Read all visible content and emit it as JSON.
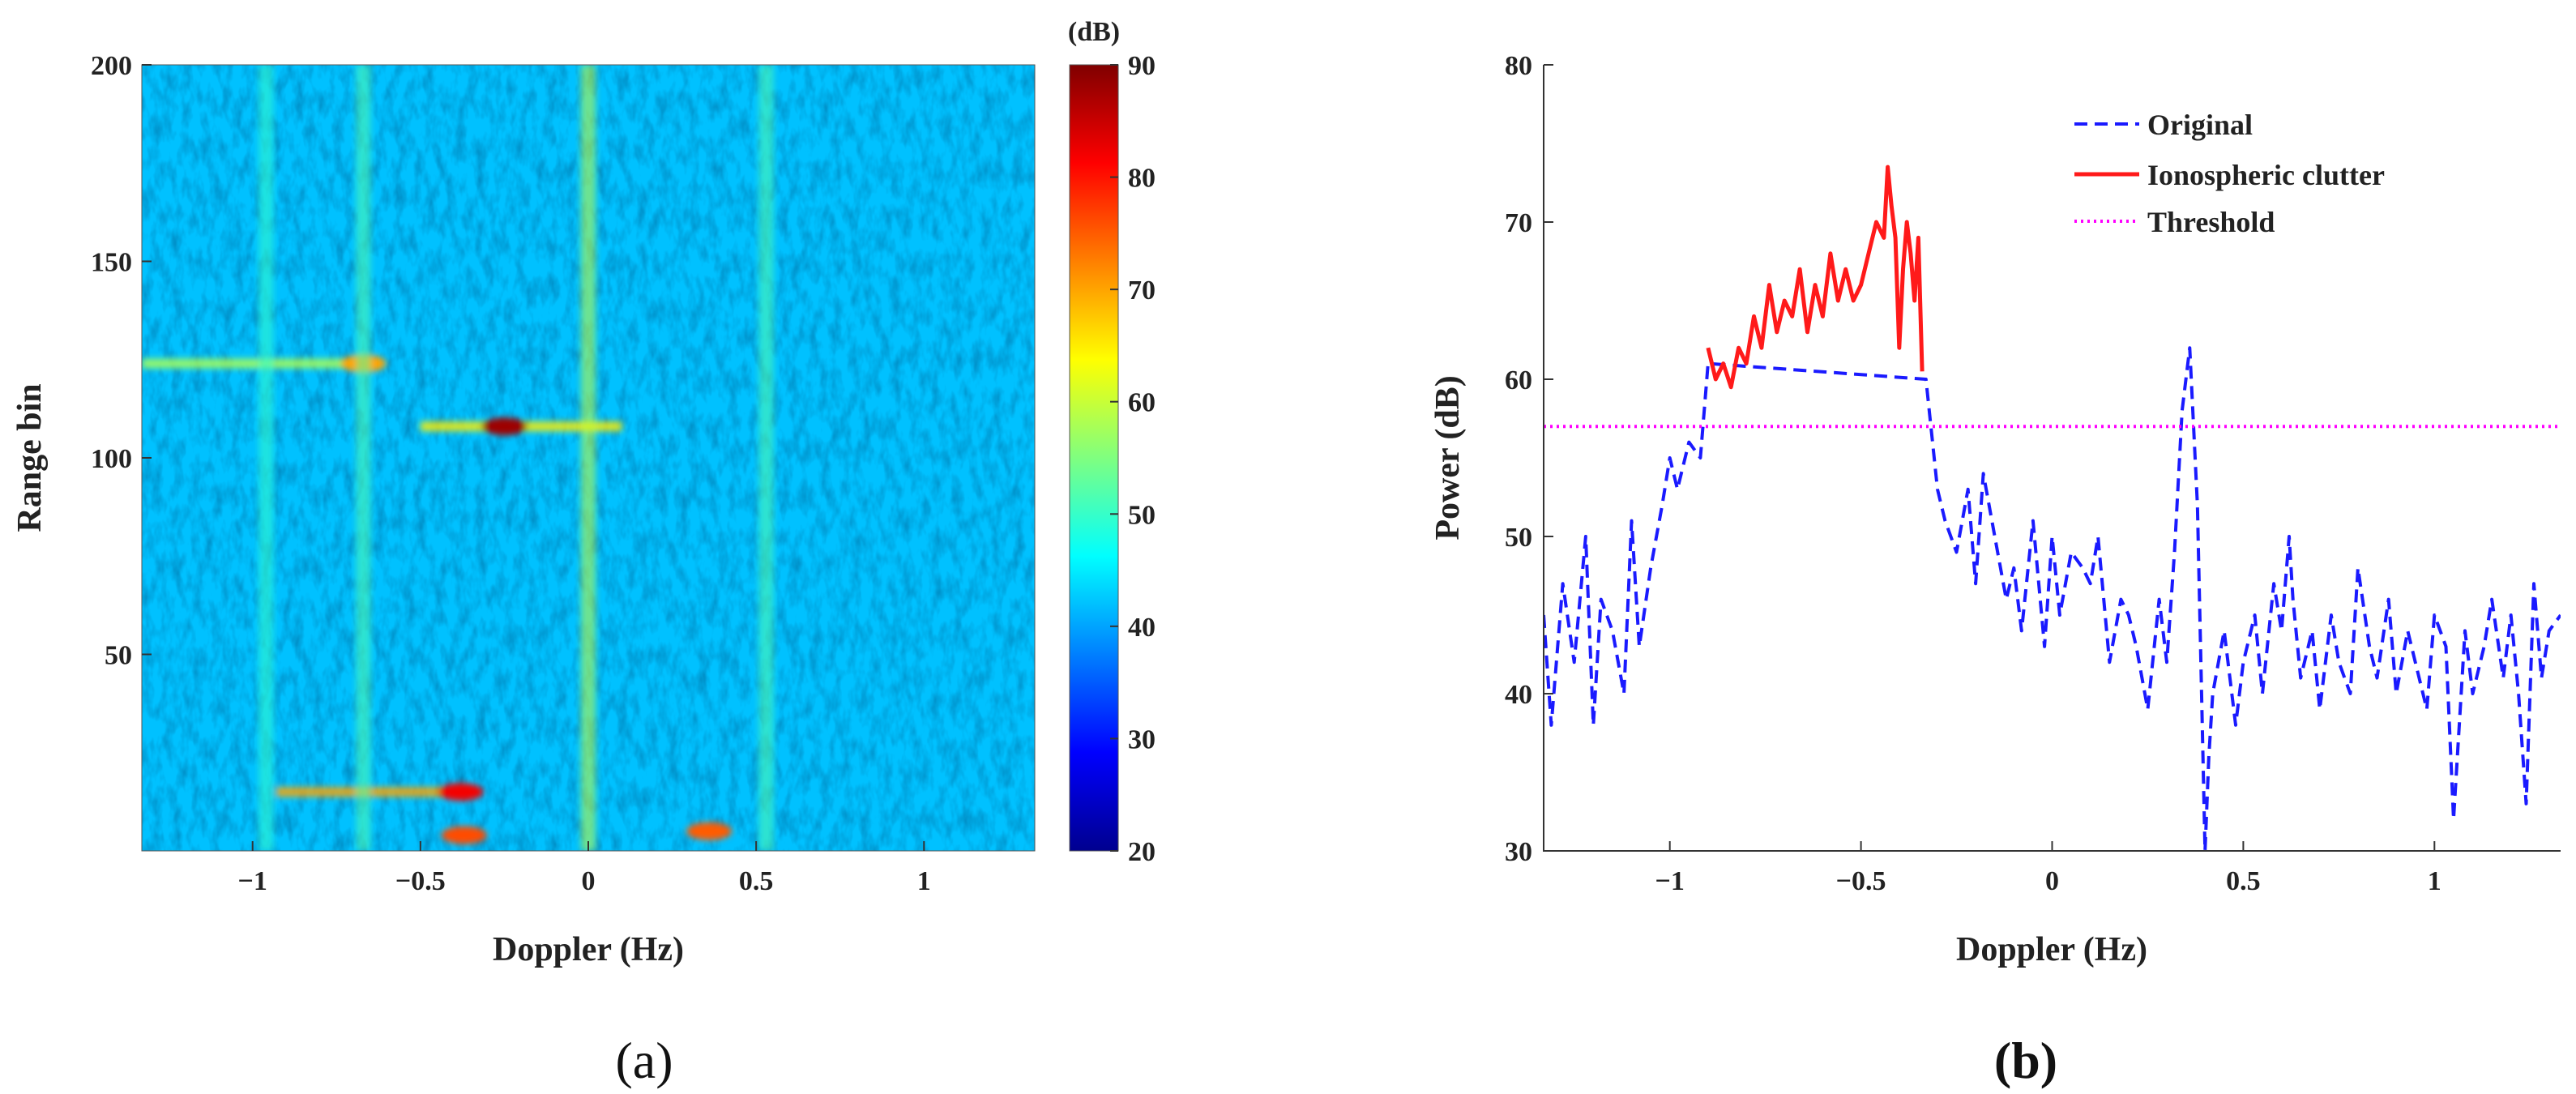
{
  "chart_data": [
    {
      "panel": "(a)",
      "type": "heatmap",
      "xlabel": "Doppler (Hz)",
      "ylabel": "Range bin",
      "xlim": [
        -1.33,
        1.33
      ],
      "ylim": [
        0,
        200
      ],
      "xticks": [
        -1,
        -0.5,
        0,
        0.5,
        1
      ],
      "xtick_labels": [
        "−1",
        "−0.5",
        "0",
        "0.5",
        "1"
      ],
      "yticks": [
        50,
        100,
        150,
        200
      ],
      "ytick_labels": [
        "50",
        "100",
        "150",
        "200"
      ],
      "colorbar": {
        "label": "(dB)",
        "range": [
          20,
          90
        ],
        "ticks": [
          20,
          30,
          40,
          50,
          60,
          70,
          80,
          90
        ],
        "tick_labels": [
          "20",
          "30",
          "40",
          "50",
          "60",
          "70",
          "80",
          "90"
        ],
        "colormap": "jet"
      },
      "background_level_db": 42,
      "features": [
        {
          "kind": "horizontal_line",
          "range_bin": 124,
          "doppler_from": -1.33,
          "doppler_to": -0.65,
          "level_db": 58
        },
        {
          "kind": "hotspot",
          "range_bin": 124,
          "doppler": -0.67,
          "level_db": 70
        },
        {
          "kind": "horizontal_line",
          "range_bin": 108,
          "doppler_from": -0.5,
          "doppler_to": 0.1,
          "level_db": 65
        },
        {
          "kind": "hotspot",
          "range_bin": 108,
          "doppler": -0.25,
          "level_db": 88
        },
        {
          "kind": "horizontal_line",
          "range_bin": 15,
          "doppler_from": -0.93,
          "doppler_to": -0.35,
          "level_db": 70
        },
        {
          "kind": "hotspot",
          "range_bin": 15,
          "doppler": -0.38,
          "level_db": 82
        },
        {
          "kind": "hotspot",
          "range_bin": 4,
          "doppler": -0.37,
          "level_db": 76
        },
        {
          "kind": "hotspot",
          "range_bin": 5,
          "doppler": 0.36,
          "level_db": 75
        },
        {
          "kind": "vertical_line",
          "doppler": 0.0,
          "level_db": 60
        },
        {
          "kind": "vertical_line",
          "doppler": -0.96,
          "level_db": 50
        },
        {
          "kind": "vertical_line",
          "doppler": -0.67,
          "level_db": 52
        },
        {
          "kind": "vertical_line",
          "doppler": 0.53,
          "level_db": 52
        }
      ]
    },
    {
      "panel": "(b)",
      "type": "line",
      "xlabel": "Doppler (Hz)",
      "ylabel": "Power (dB)",
      "xlim": [
        -1.33,
        1.33
      ],
      "ylim": [
        30,
        80
      ],
      "xticks": [
        -1,
        -0.5,
        0,
        0.5,
        1
      ],
      "xtick_labels": [
        "−1",
        "−0.5",
        "0",
        "0.5",
        "1"
      ],
      "yticks": [
        30,
        40,
        50,
        60,
        70,
        80
      ],
      "ytick_labels": [
        "30",
        "40",
        "50",
        "60",
        "70",
        "80"
      ],
      "legend_position": "top-right",
      "series": [
        {
          "name": "Original",
          "style": "dashed",
          "color": "#1a1aff",
          "x": [
            -1.33,
            -1.31,
            -1.28,
            -1.25,
            -1.22,
            -1.2,
            -1.18,
            -1.15,
            -1.12,
            -1.1,
            -1.08,
            -1.05,
            -1.02,
            -1.0,
            -0.98,
            -0.95,
            -0.92,
            -0.9,
            -0.33,
            -0.3,
            -0.28,
            -0.25,
            -0.22,
            -0.2,
            -0.18,
            -0.15,
            -0.12,
            -0.1,
            -0.08,
            -0.05,
            -0.02,
            0.0,
            0.02,
            0.05,
            0.08,
            0.1,
            0.12,
            0.15,
            0.18,
            0.2,
            0.22,
            0.25,
            0.28,
            0.3,
            0.32,
            0.34,
            0.36,
            0.38,
            0.4,
            0.41,
            0.42,
            0.45,
            0.48,
            0.5,
            0.53,
            0.55,
            0.58,
            0.6,
            0.62,
            0.63,
            0.65,
            0.68,
            0.7,
            0.73,
            0.75,
            0.78,
            0.8,
            0.83,
            0.85,
            0.88,
            0.9,
            0.93,
            0.95,
            0.98,
            1.0,
            1.03,
            1.05,
            1.08,
            1.1,
            1.13,
            1.15,
            1.18,
            1.2,
            1.22,
            1.24,
            1.26,
            1.28,
            1.3,
            1.33
          ],
          "y": [
            45,
            38,
            47,
            42,
            50,
            38,
            46,
            44,
            40,
            51,
            43,
            48,
            52,
            55,
            53,
            56,
            55,
            61,
            60,
            53,
            51,
            49,
            53,
            47,
            54,
            50,
            46,
            48,
            44,
            51,
            43,
            50,
            45,
            49,
            48,
            47,
            50,
            42,
            46,
            45,
            43,
            39,
            46,
            42,
            49,
            58,
            62,
            52,
            30,
            36,
            40,
            44,
            38,
            42,
            45,
            40,
            47,
            44,
            50,
            46,
            41,
            44,
            39,
            45,
            42,
            40,
            48,
            43,
            41,
            46,
            40,
            44,
            42,
            39,
            45,
            43,
            32,
            44,
            40,
            43,
            46,
            41,
            45,
            40,
            33,
            47,
            41,
            44,
            45
          ]
        },
        {
          "name": "Ionospheric clutter",
          "style": "solid",
          "color": "#ff1a1a",
          "x": [
            -0.9,
            -0.88,
            -0.86,
            -0.84,
            -0.82,
            -0.8,
            -0.78,
            -0.76,
            -0.74,
            -0.72,
            -0.7,
            -0.68,
            -0.66,
            -0.64,
            -0.62,
            -0.6,
            -0.58,
            -0.56,
            -0.54,
            -0.52,
            -0.5,
            -0.48,
            -0.46,
            -0.44,
            -0.43,
            -0.42,
            -0.41,
            -0.4,
            -0.39,
            -0.38,
            -0.37,
            -0.36,
            -0.35,
            -0.34
          ],
          "y": [
            62,
            60,
            61,
            59.5,
            62,
            61,
            64,
            62,
            66,
            63,
            65,
            64,
            67,
            63,
            66,
            64,
            68,
            65,
            67,
            65,
            66,
            68,
            70,
            69,
            73.5,
            71,
            69,
            62,
            67,
            70,
            68,
            65,
            69,
            60.5
          ]
        },
        {
          "name": "Threshold",
          "style": "dotted",
          "color": "#ff00ff",
          "x": [
            -1.33,
            1.33
          ],
          "y": [
            57,
            57
          ]
        }
      ]
    }
  ]
}
